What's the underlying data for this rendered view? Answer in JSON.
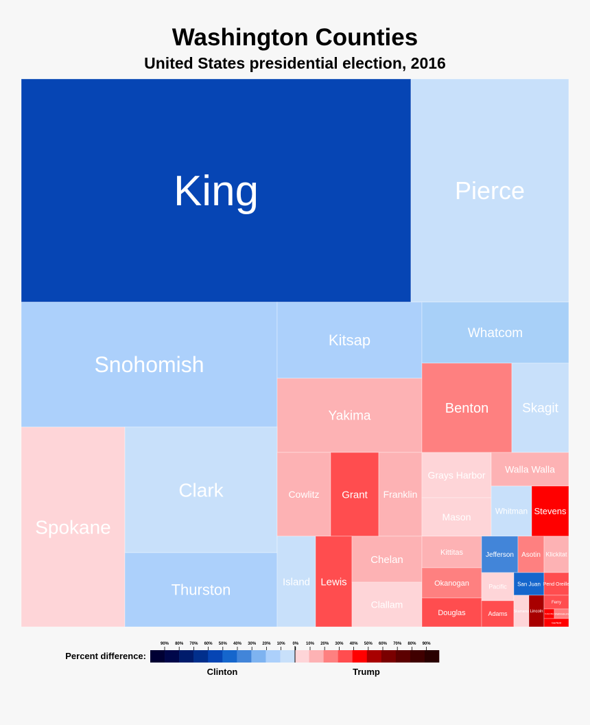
{
  "chart_data": {
    "type": "treemap",
    "title": "Washington Counties",
    "subtitle": "United States presidential election, 2016",
    "colors": {
      "clinton_70": "#0645b4",
      "clinton_50": "#1566cc",
      "clinton_40": "#4285d9",
      "clinton_30": "#a8d0f8",
      "clinton_20": "#acd0fb",
      "clinton_10": "#c8e0fa",
      "trump_10": "#fed5d8",
      "trump_20": "#fdb2b4",
      "trump_30": "#fe8080",
      "trump_40": "#ff4d4f",
      "trump_50": "#ff0000",
      "trump_60": "#a80000",
      "trump_70": "#6e0000"
    },
    "counties": [
      {
        "name": "King",
        "color": "#0645b4",
        "winner": "Clinton"
      },
      {
        "name": "Pierce",
        "color": "#c8e0fa",
        "winner": "Clinton"
      },
      {
        "name": "Snohomish",
        "color": "#acd0fb",
        "winner": "Clinton"
      },
      {
        "name": "Kitsap",
        "color": "#acd0fb",
        "winner": "Clinton"
      },
      {
        "name": "Whatcom",
        "color": "#a8d0f8",
        "winner": "Clinton"
      },
      {
        "name": "Yakima",
        "color": "#fdb2b4",
        "winner": "Trump"
      },
      {
        "name": "Benton",
        "color": "#fe8080",
        "winner": "Trump"
      },
      {
        "name": "Skagit",
        "color": "#c8e0fa",
        "winner": "Clinton"
      },
      {
        "name": "Spokane",
        "color": "#fed5d8",
        "winner": "Trump"
      },
      {
        "name": "Clark",
        "color": "#c8e0fa",
        "winner": "Clinton"
      },
      {
        "name": "Thurston",
        "color": "#acd0fb",
        "winner": "Clinton"
      },
      {
        "name": "Cowlitz",
        "color": "#fdb2b4",
        "winner": "Trump"
      },
      {
        "name": "Grant",
        "color": "#ff4d4f",
        "winner": "Trump"
      },
      {
        "name": "Franklin",
        "color": "#fdb2b4",
        "winner": "Trump"
      },
      {
        "name": "Grays Harbor",
        "color": "#fed5d8",
        "winner": "Trump"
      },
      {
        "name": "Walla Walla",
        "color": "#fdb2b4",
        "winner": "Trump"
      },
      {
        "name": "Mason",
        "color": "#fed5d8",
        "winner": "Trump"
      },
      {
        "name": "Whitman",
        "color": "#c8e0fa",
        "winner": "Clinton"
      },
      {
        "name": "Stevens",
        "color": "#ff0000",
        "winner": "Trump"
      },
      {
        "name": "Island",
        "color": "#c8e0fa",
        "winner": "Clinton"
      },
      {
        "name": "Lewis",
        "color": "#ff4d4f",
        "winner": "Trump"
      },
      {
        "name": "Chelan",
        "color": "#fdb2b4",
        "winner": "Trump"
      },
      {
        "name": "Clallam",
        "color": "#fed5d8",
        "winner": "Trump"
      },
      {
        "name": "Kittitas",
        "color": "#fdb2b4",
        "winner": "Trump"
      },
      {
        "name": "Okanogan",
        "color": "#fe8080",
        "winner": "Trump"
      },
      {
        "name": "Douglas",
        "color": "#ff4d4f",
        "winner": "Trump"
      },
      {
        "name": "Jefferson",
        "color": "#4285d9",
        "winner": "Clinton"
      },
      {
        "name": "Asotin",
        "color": "#fe8080",
        "winner": "Trump"
      },
      {
        "name": "Klickitat",
        "color": "#fdb2b4",
        "winner": "Trump"
      },
      {
        "name": "Pacific",
        "color": "#fed5d8",
        "winner": "Trump"
      },
      {
        "name": "San Juan",
        "color": "#1566cc",
        "winner": "Clinton"
      },
      {
        "name": "Pend Oreille",
        "color": "#ff4d4f",
        "winner": "Trump"
      },
      {
        "name": "Adams",
        "color": "#ff4d4f",
        "winner": "Trump"
      },
      {
        "name": "Skamania",
        "color": "#fed5d8",
        "winner": "Trump"
      },
      {
        "name": "Lincoln",
        "color": "#a80000",
        "winner": "Trump"
      },
      {
        "name": "Ferry",
        "color": "#ff4d4f",
        "winner": "Trump"
      },
      {
        "name": "Columbia",
        "color": "#ff0000",
        "winner": "Trump"
      },
      {
        "name": "Wahkiakum",
        "color": "#fe8080",
        "winner": "Trump"
      },
      {
        "name": "Garfield",
        "color": "#ff0000",
        "winner": "Trump"
      }
    ],
    "legend": {
      "label": "Percent difference:",
      "tick_labels": [
        "90%",
        "80%",
        "70%",
        "60%",
        "50%",
        "40%",
        "30%",
        "20%",
        "10%",
        "0%",
        "10%",
        "20%",
        "30%",
        "40%",
        "50%",
        "60%",
        "70%",
        "80%",
        "90%"
      ],
      "swatches": [
        "#000033",
        "#00074a",
        "#001b6b",
        "#012f8c",
        "#0645b4",
        "#1566cc",
        "#4285d9",
        "#7eb3f0",
        "#acd0fb",
        "#c8e0fa",
        "#fed5d8",
        "#fdb2b4",
        "#fe8080",
        "#ff4d4f",
        "#ff0000",
        "#a80000",
        "#7a0000",
        "#5c0000",
        "#400000",
        "#2a0000"
      ],
      "clinton_label": "Clinton",
      "trump_label": "Trump"
    }
  }
}
